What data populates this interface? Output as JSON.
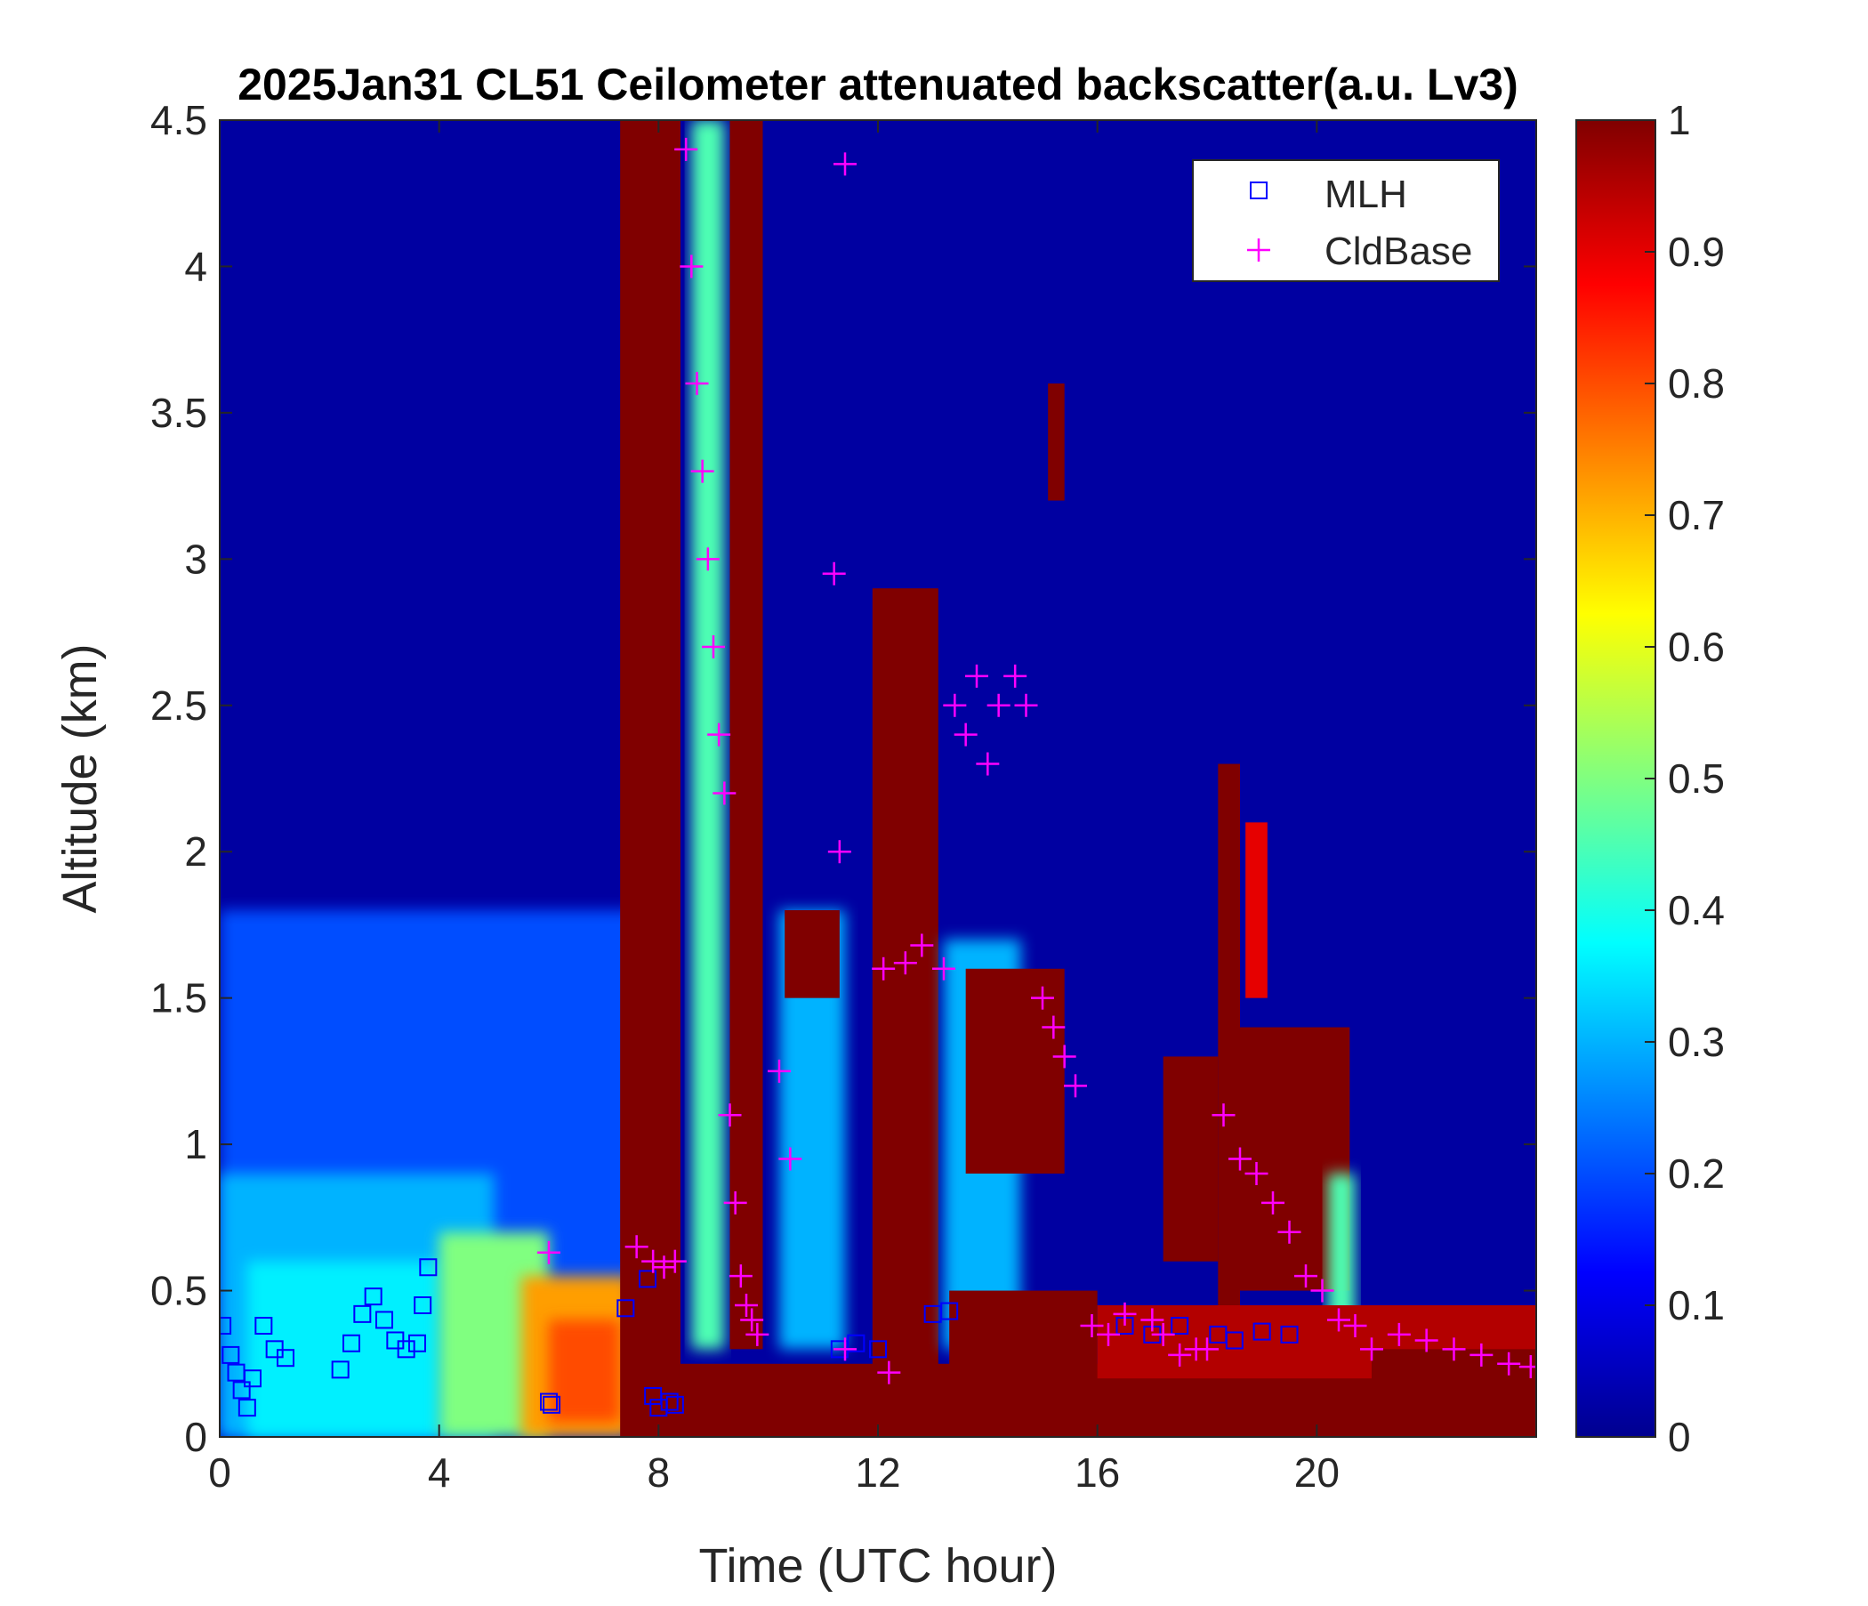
{
  "chart_data": {
    "type": "heatmap",
    "title": "2025Jan31 CL51 Ceilometer attenuated backscatter(a.u. Lv3)",
    "xlabel": "Time (UTC hour)",
    "ylabel": "Altitude (km)",
    "xlim": [
      0,
      24
    ],
    "ylim": [
      0,
      4.5
    ],
    "x_ticks": [
      "0",
      "4",
      "8",
      "12",
      "16",
      "20"
    ],
    "x_tick_values": [
      0,
      4,
      8,
      12,
      16,
      20
    ],
    "y_ticks": [
      "0",
      "0.5",
      "1",
      "1.5",
      "2",
      "2.5",
      "3",
      "3.5",
      "4",
      "4.5"
    ],
    "y_tick_values": [
      0,
      0.5,
      1,
      1.5,
      2,
      2.5,
      3,
      3.5,
      4,
      4.5
    ],
    "colorbar": {
      "colormap": "jet",
      "range": [
        0,
        1
      ],
      "ticks": [
        "0",
        "0.1",
        "0.2",
        "0.3",
        "0.4",
        "0.5",
        "0.6",
        "0.7",
        "0.8",
        "0.9",
        "1"
      ],
      "tick_values": [
        0,
        0.1,
        0.2,
        0.3,
        0.4,
        0.5,
        0.6,
        0.7,
        0.8,
        0.9,
        1
      ]
    },
    "grid": false,
    "legend_position": "top-right",
    "background_value": 0.02,
    "field_regions": [
      {
        "x": [
          0,
          7.8
        ],
        "y": [
          0,
          1.8
        ],
        "value": 0.2
      },
      {
        "x": [
          0,
          5
        ],
        "y": [
          0,
          0.9
        ],
        "value": 0.3
      },
      {
        "x": [
          0.5,
          4
        ],
        "y": [
          0,
          0.6
        ],
        "value": 0.36
      },
      {
        "x": [
          4,
          6
        ],
        "y": [
          0,
          0.7
        ],
        "value": 0.5
      },
      {
        "x": [
          5.5,
          7.5
        ],
        "y": [
          0,
          0.55
        ],
        "value": 0.72
      },
      {
        "x": [
          6,
          7.3
        ],
        "y": [
          0.05,
          0.4
        ],
        "value": 0.8
      },
      {
        "x": [
          7.9,
          24
        ],
        "y": [
          0,
          0.25
        ],
        "value": 1
      },
      {
        "x": [
          7.3,
          8.4
        ],
        "y": [
          0,
          4.5
        ],
        "value": 1
      },
      {
        "x": [
          8.6,
          9.2
        ],
        "y": [
          0.3,
          4.5
        ],
        "value": 0.45
      },
      {
        "x": [
          9.3,
          9.9
        ],
        "y": [
          0.3,
          4.5
        ],
        "value": 1
      },
      {
        "x": [
          10.2,
          11.4
        ],
        "y": [
          0.3,
          1.8
        ],
        "value": 0.3
      },
      {
        "x": [
          10.3,
          11.3
        ],
        "y": [
          1.5,
          1.8
        ],
        "value": 1
      },
      {
        "x": [
          11.9,
          13.1
        ],
        "y": [
          0,
          2.9
        ],
        "value": 1
      },
      {
        "x": [
          13.2,
          14.6
        ],
        "y": [
          0.3,
          1.7
        ],
        "value": 0.3
      },
      {
        "x": [
          13.6,
          15.4
        ],
        "y": [
          0.9,
          1.6
        ],
        "value": 1
      },
      {
        "x": [
          13.3,
          16
        ],
        "y": [
          0,
          0.5
        ],
        "value": 1
      },
      {
        "x": [
          15.1,
          15.4
        ],
        "y": [
          3.2,
          3.6
        ],
        "value": 1
      },
      {
        "x": [
          17.2,
          18.2
        ],
        "y": [
          0.6,
          1.3
        ],
        "value": 1
      },
      {
        "x": [
          18.2,
          18.6
        ],
        "y": [
          0.3,
          2.3
        ],
        "value": 1
      },
      {
        "x": [
          18.7,
          19.1
        ],
        "y": [
          1.5,
          2.1
        ],
        "value": 0.9
      },
      {
        "x": [
          18.6,
          20.6
        ],
        "y": [
          0.5,
          1.4
        ],
        "value": 1
      },
      {
        "x": [
          20.2,
          20.7
        ],
        "y": [
          0.3,
          0.9
        ],
        "value": 0.45
      },
      {
        "x": [
          16,
          24
        ],
        "y": [
          0.2,
          0.45
        ],
        "value": 0.95
      },
      {
        "x": [
          21,
          24
        ],
        "y": [
          0.05,
          0.3
        ],
        "value": 1
      }
    ],
    "series": [
      {
        "name": "MLH",
        "marker": "square",
        "color": "#0000ff",
        "x": [
          0.05,
          0.2,
          0.3,
          0.4,
          0.5,
          0.6,
          0.8,
          1.0,
          1.2,
          2.2,
          2.4,
          2.6,
          2.8,
          3.0,
          3.2,
          3.4,
          3.6,
          3.7,
          3.8,
          6.0,
          6.05,
          7.4,
          7.8,
          7.9,
          8.0,
          8.2,
          8.3,
          11.3,
          11.6,
          12.0,
          13.0,
          13.3,
          16.5,
          17.0,
          17.5,
          18.2,
          18.5,
          19.0,
          19.5
        ],
        "y": [
          0.38,
          0.28,
          0.22,
          0.16,
          0.1,
          0.2,
          0.38,
          0.3,
          0.27,
          0.23,
          0.32,
          0.42,
          0.48,
          0.4,
          0.33,
          0.3,
          0.32,
          0.45,
          0.58,
          0.12,
          0.11,
          0.44,
          0.54,
          0.14,
          0.1,
          0.12,
          0.11,
          0.3,
          0.32,
          0.3,
          0.42,
          0.43,
          0.38,
          0.35,
          0.38,
          0.35,
          0.33,
          0.36,
          0.35
        ]
      },
      {
        "name": "CldBase",
        "marker": "plus",
        "color": "#ff00ff",
        "x": [
          6.0,
          7.6,
          7.9,
          8.1,
          8.3,
          8.5,
          8.6,
          8.7,
          8.8,
          8.9,
          9.0,
          9.1,
          9.2,
          9.3,
          9.4,
          9.5,
          9.6,
          9.7,
          9.8,
          10.2,
          10.4,
          11.2,
          11.3,
          11.4,
          11.4,
          12.1,
          12.2,
          12.5,
          12.8,
          13.2,
          13.4,
          13.6,
          13.8,
          14.0,
          14.2,
          14.5,
          14.7,
          15.0,
          15.2,
          15.4,
          15.6,
          15.9,
          16.2,
          16.5,
          17.0,
          17.2,
          17.5,
          17.8,
          18.0,
          18.3,
          18.6,
          18.9,
          19.2,
          19.5,
          19.8,
          20.1,
          20.4,
          20.7,
          21.0,
          21.5,
          22.0,
          22.5,
          23.0,
          23.5,
          23.9
        ],
        "y": [
          0.63,
          0.65,
          0.6,
          0.58,
          0.6,
          4.4,
          4.0,
          3.6,
          3.3,
          3.0,
          2.7,
          2.4,
          2.2,
          1.1,
          0.8,
          0.55,
          0.45,
          0.4,
          0.35,
          1.25,
          0.95,
          2.95,
          2.0,
          4.35,
          0.3,
          1.6,
          0.22,
          1.62,
          1.68,
          1.6,
          2.5,
          2.4,
          2.6,
          2.3,
          2.5,
          2.6,
          2.5,
          1.5,
          1.4,
          1.3,
          1.2,
          0.38,
          0.35,
          0.42,
          0.4,
          0.35,
          0.28,
          0.3,
          0.3,
          1.1,
          0.95,
          0.9,
          0.8,
          0.7,
          0.55,
          0.5,
          0.4,
          0.38,
          0.3,
          0.35,
          0.33,
          0.3,
          0.28,
          0.25,
          0.24
        ]
      }
    ]
  }
}
